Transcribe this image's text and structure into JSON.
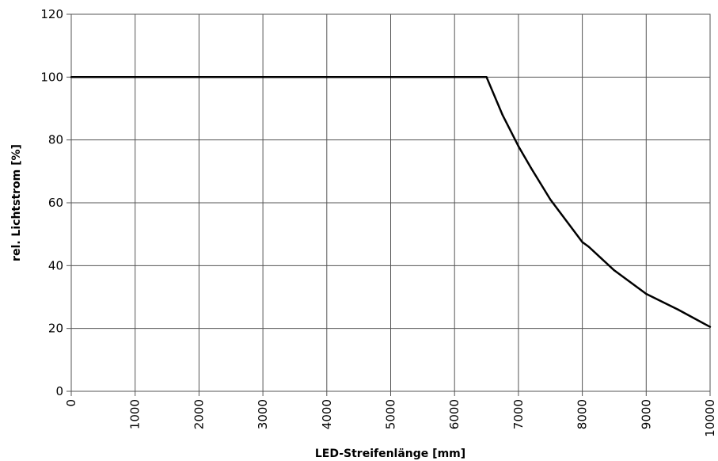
{
  "chart_data": {
    "type": "line",
    "title": "",
    "xlabel": "LED-Streifenlänge [mm]",
    "ylabel": "rel. Lichtstrom [%]",
    "xlim": [
      0,
      10000
    ],
    "ylim": [
      0,
      120
    ],
    "x_ticks": [
      "0",
      "1000",
      "2000",
      "3000",
      "4000",
      "5000",
      "6000",
      "7000",
      "8000",
      "9000",
      "10000"
    ],
    "y_ticks": [
      "0",
      "20",
      "40",
      "60",
      "80",
      "100",
      "120"
    ],
    "grid": true,
    "series": [
      {
        "color": "#000000",
        "points": [
          [
            0,
            100
          ],
          [
            6500,
            100
          ],
          [
            6750,
            88
          ],
          [
            7000,
            78
          ],
          [
            7200,
            71
          ],
          [
            7500,
            61
          ],
          [
            8000,
            47.5
          ],
          [
            8100,
            46
          ],
          [
            8500,
            38.5
          ],
          [
            9000,
            31
          ],
          [
            9500,
            26
          ],
          [
            10000,
            20.5
          ]
        ]
      }
    ]
  }
}
